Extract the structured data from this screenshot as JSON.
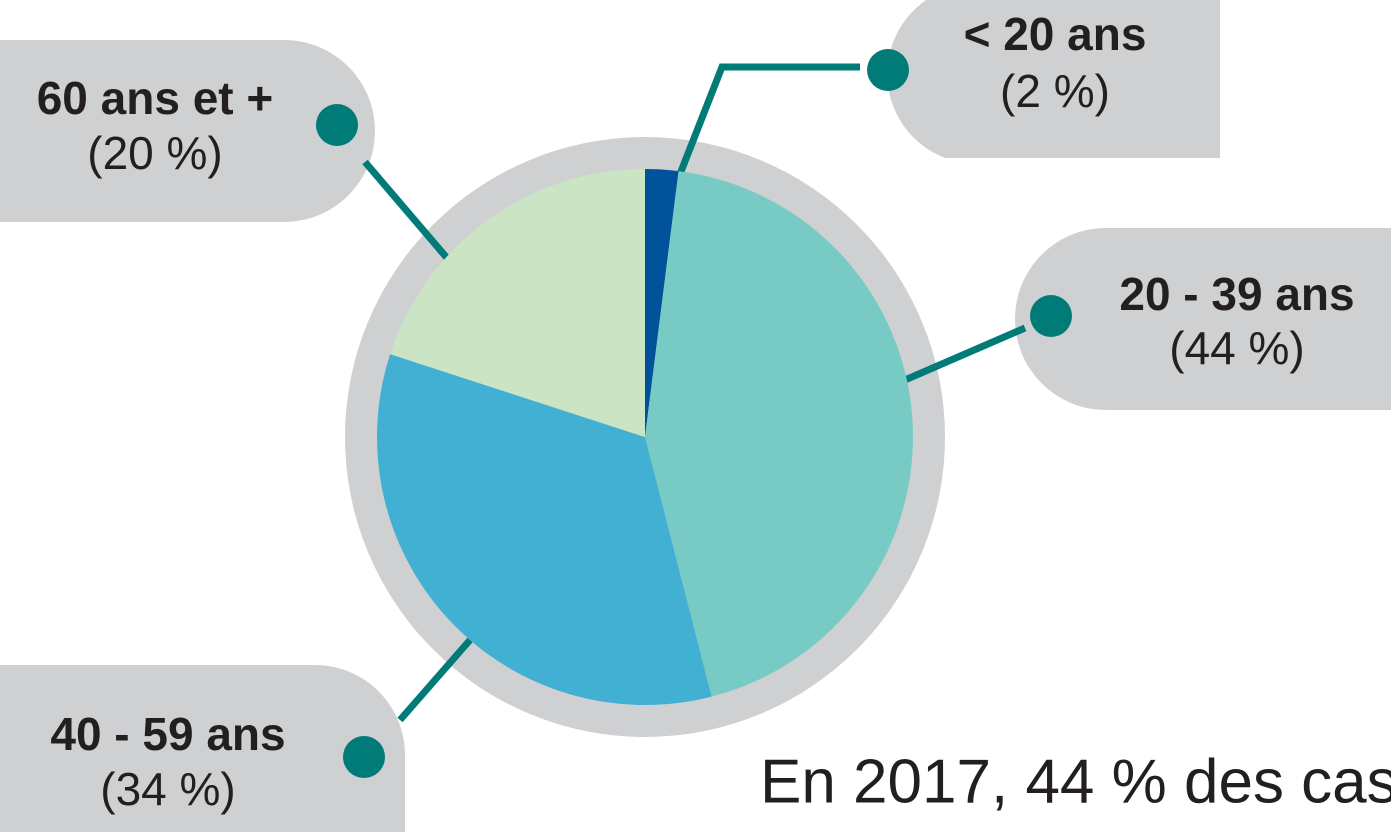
{
  "chart_data": {
    "type": "pie",
    "categories": [
      "< 20 ans",
      "20 - 39 ans",
      "40 - 59 ans",
      "60 ans et +"
    ],
    "values": [
      2,
      44,
      34,
      20
    ],
    "value_labels": [
      "(2 %)",
      "(44 %)",
      "(34 %)",
      "(20 %)"
    ],
    "colors": [
      "#00539b",
      "#78cbc4",
      "#42b0d3",
      "#cbe5c4"
    ],
    "annotation": "En 2017, 44 % des cas"
  }
}
